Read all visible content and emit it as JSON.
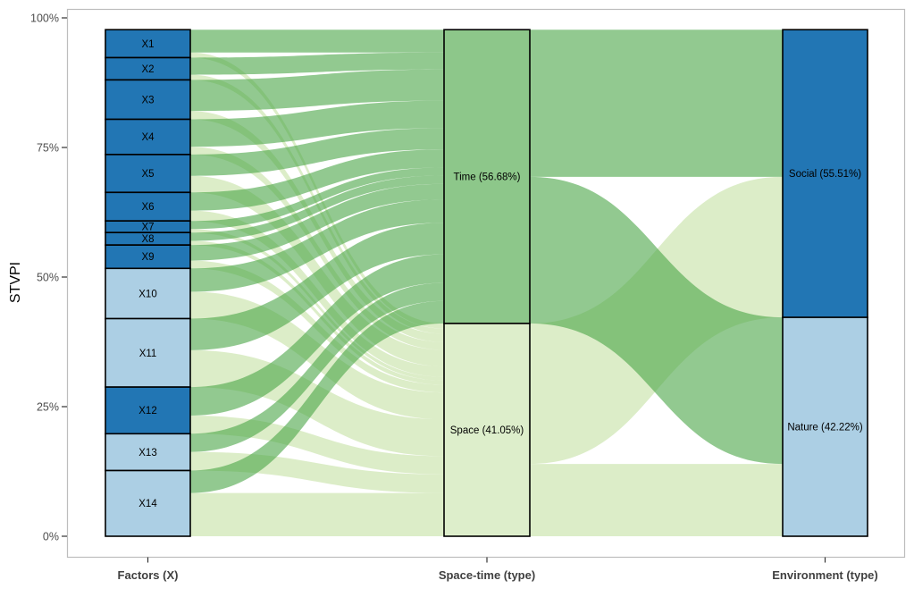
{
  "y_axis": {
    "title": "STVPI",
    "ticks": [
      "0%",
      "25%",
      "50%",
      "75%",
      "100%"
    ]
  },
  "x_axis": {
    "labels": [
      "Factors (X)",
      "Space-time (type)",
      "Environment (type)"
    ]
  },
  "colors": {
    "dark_blue": "#2276b4",
    "light_blue": "#accfe4",
    "time_green": "#8dc78a",
    "space_green": "#ddeecb",
    "flow_time": "#49a546",
    "flow_space": "#c5e1a3",
    "flow_opacity": 0.6,
    "node_stroke": "#000000",
    "panel_border": "#bdbdbd",
    "tick_color": "#333333",
    "tick_label": "#4d4d4d",
    "axis_label": "#404040"
  },
  "chart_data": {
    "type": "alluvial-sankey",
    "title": "",
    "ylabel": "STVPI",
    "ylim": [
      0,
      100
    ],
    "y_unit": "percent",
    "grid": false,
    "legend": false,
    "axes": [
      "Factors (X)",
      "Space-time (type)",
      "Environment (type)"
    ],
    "columns": [
      {
        "name": "Factors (X)",
        "nodes": [
          {
            "id": "X1",
            "label": "X1",
            "value": 5.4,
            "color": "dark_blue"
          },
          {
            "id": "X2",
            "label": "X2",
            "value": 4.3,
            "color": "dark_blue"
          },
          {
            "id": "X3",
            "label": "X3",
            "value": 7.6,
            "color": "dark_blue"
          },
          {
            "id": "X4",
            "label": "X4",
            "value": 6.8,
            "color": "dark_blue"
          },
          {
            "id": "X5",
            "label": "X5",
            "value": 7.3,
            "color": "dark_blue"
          },
          {
            "id": "X6",
            "label": "X6",
            "value": 5.5,
            "color": "dark_blue"
          },
          {
            "id": "X7",
            "label": "X7",
            "value": 2.25,
            "color": "dark_blue"
          },
          {
            "id": "X8",
            "label": "X8",
            "value": 2.4,
            "color": "dark_blue"
          },
          {
            "id": "X9",
            "label": "X9",
            "value": 4.5,
            "color": "dark_blue"
          },
          {
            "id": "X10",
            "label": "X10",
            "value": 9.7,
            "color": "light_blue"
          },
          {
            "id": "X11",
            "label": "X11",
            "value": 13.2,
            "color": "light_blue"
          },
          {
            "id": "X12",
            "label": "X12",
            "value": 9.0,
            "color": "dark_blue"
          },
          {
            "id": "X13",
            "label": "X13",
            "value": 7.1,
            "color": "light_blue"
          },
          {
            "id": "X14",
            "label": "X14",
            "value": 12.68,
            "color": "light_blue"
          }
        ]
      },
      {
        "name": "Space-time (type)",
        "nodes": [
          {
            "id": "Time",
            "label": "Time (56.68%)",
            "value": 56.68,
            "color": "time_green"
          },
          {
            "id": "Space",
            "label": "Space (41.05%)",
            "value": 41.05,
            "color": "space_green"
          }
        ]
      },
      {
        "name": "Environment (type)",
        "nodes": [
          {
            "id": "Social",
            "label": "Social (55.51%)",
            "value": 55.51,
            "color": "dark_blue"
          },
          {
            "id": "Nature",
            "label": "Nature (42.22%)",
            "value": 42.22,
            "color": "light_blue"
          }
        ]
      }
    ],
    "flows_factors_to_spacetime": [
      {
        "from": "X1",
        "to": "Time",
        "value": 4.4,
        "type": "time"
      },
      {
        "from": "X1",
        "to": "Space",
        "value": 1.0,
        "type": "space"
      },
      {
        "from": "X2",
        "to": "Time",
        "value": 3.3,
        "type": "time"
      },
      {
        "from": "X2",
        "to": "Space",
        "value": 1.0,
        "type": "space"
      },
      {
        "from": "X3",
        "to": "Time",
        "value": 6.0,
        "type": "time"
      },
      {
        "from": "X3",
        "to": "Space",
        "value": 1.6,
        "type": "space"
      },
      {
        "from": "X4",
        "to": "Time",
        "value": 5.3,
        "type": "time"
      },
      {
        "from": "X4",
        "to": "Space",
        "value": 1.5,
        "type": "space"
      },
      {
        "from": "X5",
        "to": "Time",
        "value": 4.1,
        "type": "time"
      },
      {
        "from": "X5",
        "to": "Space",
        "value": 3.2,
        "type": "space"
      },
      {
        "from": "X6",
        "to": "Time",
        "value": 3.5,
        "type": "time"
      },
      {
        "from": "X6",
        "to": "Space",
        "value": 2.0,
        "type": "space"
      },
      {
        "from": "X7",
        "to": "Time",
        "value": 1.55,
        "type": "time"
      },
      {
        "from": "X7",
        "to": "Space",
        "value": 0.7,
        "type": "space"
      },
      {
        "from": "X8",
        "to": "Time",
        "value": 1.6,
        "type": "time"
      },
      {
        "from": "X8",
        "to": "Space",
        "value": 0.8,
        "type": "space"
      },
      {
        "from": "X9",
        "to": "Time",
        "value": 3.0,
        "type": "time"
      },
      {
        "from": "X9",
        "to": "Space",
        "value": 1.5,
        "type": "space"
      },
      {
        "from": "X10",
        "to": "Time",
        "value": 4.5,
        "type": "time"
      },
      {
        "from": "X10",
        "to": "Space",
        "value": 5.2,
        "type": "space"
      },
      {
        "from": "X11",
        "to": "Time",
        "value": 6.1,
        "type": "time"
      },
      {
        "from": "X11",
        "to": "Space",
        "value": 7.1,
        "type": "space"
      },
      {
        "from": "X12",
        "to": "Time",
        "value": 5.5,
        "type": "time"
      },
      {
        "from": "X12",
        "to": "Space",
        "value": 3.5,
        "type": "space"
      },
      {
        "from": "X13",
        "to": "Time",
        "value": 3.5,
        "type": "time"
      },
      {
        "from": "X13",
        "to": "Space",
        "value": 3.6,
        "type": "space"
      },
      {
        "from": "X14",
        "to": "Time",
        "value": 4.33,
        "type": "time"
      },
      {
        "from": "X14",
        "to": "Space",
        "value": 8.35,
        "type": "space"
      }
    ],
    "flows_spacetime_to_environment": [
      {
        "from": "Time",
        "to": "Social",
        "value": 28.4,
        "type": "time"
      },
      {
        "from": "Time",
        "to": "Nature",
        "value": 28.28,
        "type": "time"
      },
      {
        "from": "Space",
        "to": "Social",
        "value": 27.11,
        "type": "space"
      },
      {
        "from": "Space",
        "to": "Nature",
        "value": 13.94,
        "type": "space"
      }
    ]
  }
}
